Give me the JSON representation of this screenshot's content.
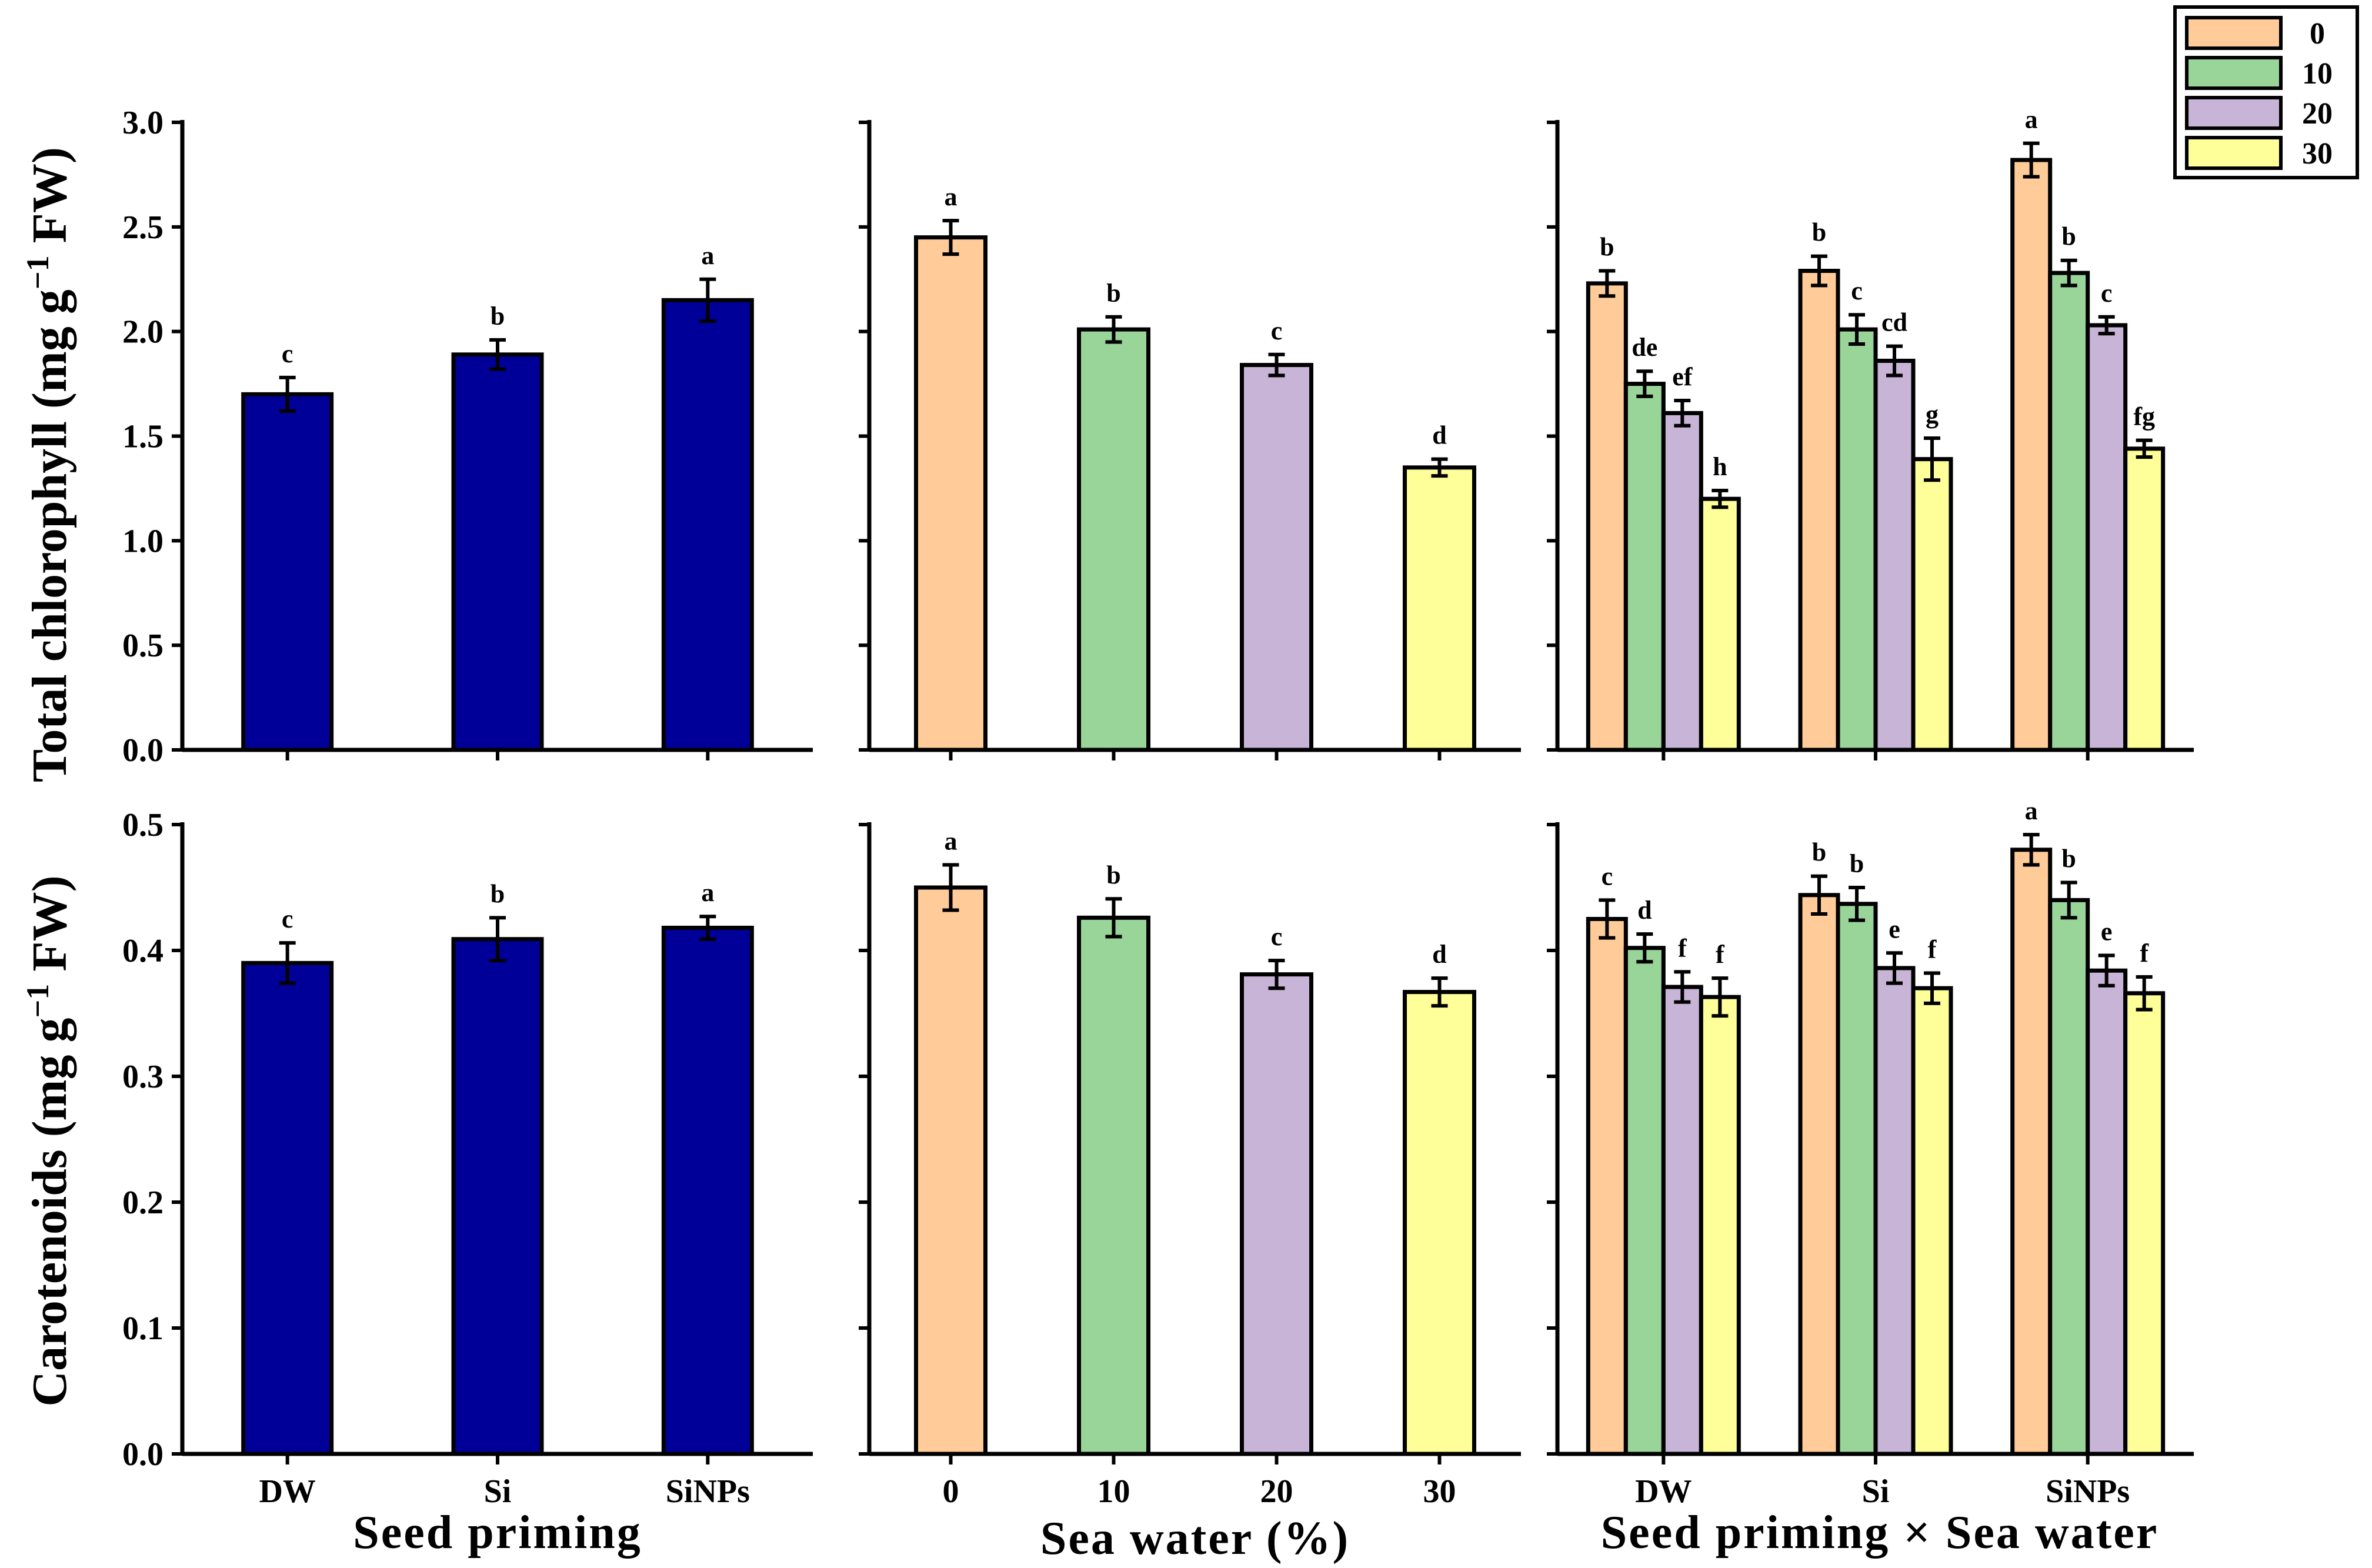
{
  "colors": {
    "priming_bar": "#000099",
    "sea_water": {
      "0": "#FFCC99",
      "10": "#99D499",
      "20": "#C8B4D6",
      "30": "#FFFF99"
    },
    "axis": "#000000"
  },
  "legend": {
    "title": "",
    "entries": [
      {
        "key": "0",
        "label": "0"
      },
      {
        "key": "10",
        "label": "10"
      },
      {
        "key": "20",
        "label": "20"
      },
      {
        "key": "30",
        "label": "30"
      }
    ]
  },
  "rows": [
    {
      "ylabel_main": "Total chlorophyll (mg g",
      "ylabel_sup": "−1",
      "ylabel_end": " FW)",
      "ylim": [
        0,
        3.0
      ],
      "yticks": [
        "0.0",
        "0.5",
        "1.0",
        "1.5",
        "2.0",
        "2.5",
        "3.0"
      ],
      "ytick_values": [
        0,
        0.5,
        1.0,
        1.5,
        2.0,
        2.5,
        3.0
      ]
    },
    {
      "ylabel_main": "Carotenoids (mg g",
      "ylabel_sup": "−1",
      "ylabel_end": " FW)",
      "ylim": [
        0,
        0.5
      ],
      "yticks": [
        "0.0",
        "0.1",
        "0.2",
        "0.3",
        "0.4",
        "0.5"
      ],
      "ytick_values": [
        0,
        0.1,
        0.2,
        0.3,
        0.4,
        0.5
      ]
    }
  ],
  "columns": [
    {
      "xlabel": "Seed priming"
    },
    {
      "xlabel": "Sea water (%)"
    },
    {
      "xlabel": "Seed priming × Sea water"
    }
  ],
  "chart_data": [
    {
      "type": "bar",
      "row": 0,
      "col": 0,
      "categories": [
        "DW",
        "Si",
        "SiNPs"
      ],
      "values": [
        1.7,
        1.89,
        2.15
      ],
      "errors": [
        0.08,
        0.07,
        0.1
      ],
      "letters": [
        "c",
        "b",
        "a"
      ],
      "ylabel": "Total chlorophyll (mg g−1 FW)",
      "xlabel": "",
      "ylim": [
        0,
        3.0
      ]
    },
    {
      "type": "bar",
      "row": 0,
      "col": 1,
      "categories": [
        "0",
        "10",
        "20",
        "30"
      ],
      "values": [
        2.45,
        2.01,
        1.84,
        1.35
      ],
      "errors": [
        0.08,
        0.06,
        0.05,
        0.04
      ],
      "letters": [
        "a",
        "b",
        "c",
        "d"
      ],
      "color_keys": [
        "0",
        "10",
        "20",
        "30"
      ],
      "ylim": [
        0,
        3.0
      ]
    },
    {
      "type": "bar",
      "row": 0,
      "col": 2,
      "categories": [
        "DW",
        "Si",
        "SiNPs"
      ],
      "series": [
        {
          "name": "0",
          "values": [
            2.23,
            2.29,
            2.82
          ],
          "errors": [
            0.06,
            0.07,
            0.08
          ],
          "letters": [
            "b",
            "b",
            "a"
          ]
        },
        {
          "name": "10",
          "values": [
            1.75,
            2.01,
            2.28
          ],
          "errors": [
            0.06,
            0.07,
            0.06
          ],
          "letters": [
            "de",
            "c",
            "b"
          ]
        },
        {
          "name": "20",
          "values": [
            1.61,
            1.86,
            2.03
          ],
          "errors": [
            0.06,
            0.07,
            0.04
          ],
          "letters": [
            "ef",
            "cd",
            "c"
          ]
        },
        {
          "name": "30",
          "values": [
            1.2,
            1.39,
            1.44
          ],
          "errors": [
            0.04,
            0.1,
            0.04
          ],
          "letters": [
            "h",
            "g",
            "fg"
          ]
        }
      ],
      "ylim": [
        0,
        3.0
      ]
    },
    {
      "type": "bar",
      "row": 1,
      "col": 0,
      "categories": [
        "DW",
        "Si",
        "SiNPs"
      ],
      "values": [
        0.39,
        0.409,
        0.418
      ],
      "errors": [
        0.016,
        0.017,
        0.009
      ],
      "letters": [
        "c",
        "b",
        "a"
      ],
      "ylabel": "Carotenoids (mg g−1 FW)",
      "xlabel": "Seed priming",
      "ylim": [
        0,
        0.5
      ]
    },
    {
      "type": "bar",
      "row": 1,
      "col": 1,
      "categories": [
        "0",
        "10",
        "20",
        "30"
      ],
      "values": [
        0.45,
        0.426,
        0.381,
        0.367
      ],
      "errors": [
        0.018,
        0.015,
        0.011,
        0.011
      ],
      "letters": [
        "a",
        "b",
        "c",
        "d"
      ],
      "color_keys": [
        "0",
        "10",
        "20",
        "30"
      ],
      "xlabel": "Sea water (%)",
      "ylim": [
        0,
        0.5
      ]
    },
    {
      "type": "bar",
      "row": 1,
      "col": 2,
      "categories": [
        "DW",
        "Si",
        "SiNPs"
      ],
      "series": [
        {
          "name": "0",
          "values": [
            0.425,
            0.444,
            0.48
          ],
          "errors": [
            0.015,
            0.015,
            0.012
          ],
          "letters": [
            "c",
            "b",
            "a"
          ]
        },
        {
          "name": "10",
          "values": [
            0.402,
            0.437,
            0.44
          ],
          "errors": [
            0.011,
            0.013,
            0.014
          ],
          "letters": [
            "d",
            "b",
            "b"
          ]
        },
        {
          "name": "20",
          "values": [
            0.371,
            0.386,
            0.384
          ],
          "errors": [
            0.012,
            0.012,
            0.012
          ],
          "letters": [
            "f",
            "e",
            "e"
          ]
        },
        {
          "name": "30",
          "values": [
            0.363,
            0.37,
            0.366
          ],
          "errors": [
            0.015,
            0.012,
            0.013
          ],
          "letters": [
            "f",
            "f",
            "f"
          ]
        }
      ],
      "xlabel": "Seed priming × Sea water",
      "ylim": [
        0,
        0.5
      ]
    }
  ]
}
